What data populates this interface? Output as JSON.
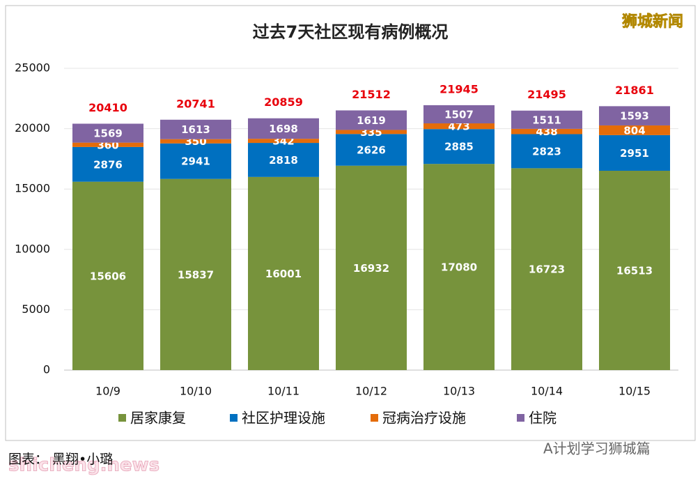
{
  "chart_data": {
    "type": "stacked-bar",
    "title": "过去7天社区现有病例概况",
    "categories": [
      "10/9",
      "10/10",
      "10/11",
      "10/12",
      "10/13",
      "10/14",
      "10/15"
    ],
    "series": [
      {
        "name": "居家康复",
        "color": "#77933c",
        "values": [
          15606,
          15837,
          16001,
          16932,
          17080,
          16723,
          16513
        ]
      },
      {
        "name": "社区护理设施",
        "color": "#0070c0",
        "values": [
          2876,
          2941,
          2818,
          2626,
          2885,
          2823,
          2951
        ]
      },
      {
        "name": "冠病治疗设施",
        "color": "#e46c0a",
        "values": [
          360,
          350,
          342,
          335,
          473,
          438,
          804
        ]
      },
      {
        "name": "住院",
        "color": "#8064a2",
        "values": [
          1569,
          1613,
          1698,
          1619,
          1507,
          1511,
          1593
        ]
      }
    ],
    "totals": [
      20410,
      20741,
      20859,
      21512,
      21945,
      21495,
      21861
    ],
    "totals_color": "#e8000b",
    "ylim": [
      0,
      25000
    ],
    "yticks": [
      0,
      5000,
      10000,
      15000,
      20000,
      25000
    ],
    "grid": true,
    "legend": "bottom"
  },
  "watermarks": [
    "狮城新闻",
    "shicheng.news",
    "A计划学习狮城篇"
  ],
  "credit": "图表： 黑翔•小璐"
}
